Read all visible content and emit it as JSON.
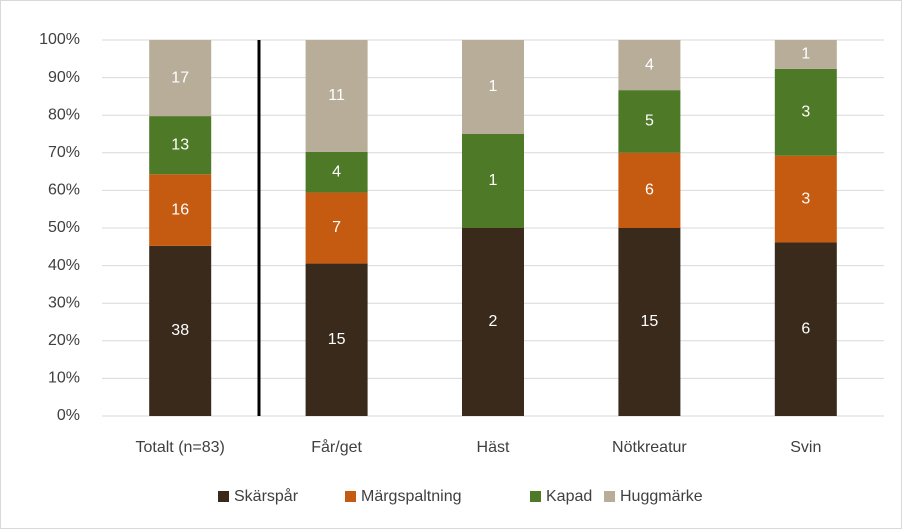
{
  "chart_data": {
    "type": "bar",
    "stacking": "percent",
    "categories": [
      "Totalt (n=83)",
      "Får/get",
      "Häst",
      "Nötkreatur",
      "Svin"
    ],
    "series": [
      {
        "name": "Skärspår",
        "color": "#392a1b",
        "values": [
          38,
          15,
          2,
          15,
          6
        ]
      },
      {
        "name": "Märgspaltning",
        "color": "#c55a11",
        "values": [
          16,
          7,
          null,
          6,
          3
        ]
      },
      {
        "name": "Kapad",
        "color": "#4e7a27",
        "values": [
          13,
          4,
          1,
          5,
          3
        ]
      },
      {
        "name": "Huggmärke",
        "color": "#b7ad98",
        "values": [
          17,
          11,
          1,
          4,
          1
        ]
      }
    ],
    "ylim": [
      0,
      100
    ],
    "yticks": [
      {
        "value": 0,
        "label": "0%"
      },
      {
        "value": 10,
        "label": "10%"
      },
      {
        "value": 20,
        "label": "20%"
      },
      {
        "value": 30,
        "label": "30%"
      },
      {
        "value": 40,
        "label": "40%"
      },
      {
        "value": 50,
        "label": "50%"
      },
      {
        "value": 60,
        "label": "60%"
      },
      {
        "value": 70,
        "label": "70%"
      },
      {
        "value": 80,
        "label": "80%"
      },
      {
        "value": 90,
        "label": "90%"
      },
      {
        "value": 100,
        "label": "100%"
      }
    ],
    "grid": true,
    "legend": "bottom"
  }
}
